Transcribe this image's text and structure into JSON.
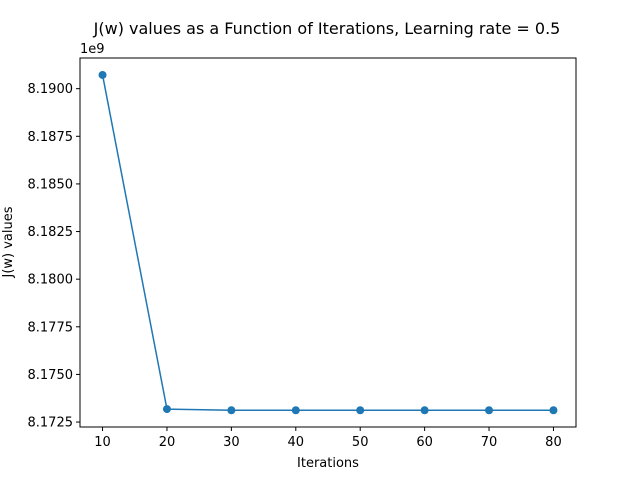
{
  "chart_data": {
    "type": "line",
    "title": "J(w) values as a Function of Iterations, Learning rate = 0.5",
    "xlabel": "Iterations",
    "ylabel": "J(w) values",
    "y_offset_label": "1e9",
    "x": [
      10,
      20,
      30,
      40,
      50,
      60,
      70,
      80
    ],
    "series": [
      {
        "values": [
          8.19072,
          8.17318,
          8.17312,
          8.17312,
          8.17312,
          8.17312,
          8.17312,
          8.17312
        ]
      }
    ],
    "xlim": [
      6.5,
      83.5
    ],
    "ylim": [
      8.17224,
      8.19161
    ],
    "x_ticks": [
      10,
      20,
      30,
      40,
      50,
      60,
      70,
      80
    ],
    "x_tick_labels": [
      "10",
      "20",
      "30",
      "40",
      "50",
      "60",
      "70",
      "80"
    ],
    "y_ticks": [
      8.1725,
      8.175,
      8.1775,
      8.18,
      8.1825,
      8.185,
      8.1875,
      8.19
    ],
    "y_tick_labels": [
      "8.1725",
      "8.1750",
      "8.1775",
      "8.1800",
      "8.1825",
      "8.1850",
      "8.1875",
      "8.1900"
    ],
    "grid": false,
    "marker": "circle",
    "colors": {
      "series": "#1f77b4",
      "axes": "#000000"
    }
  }
}
